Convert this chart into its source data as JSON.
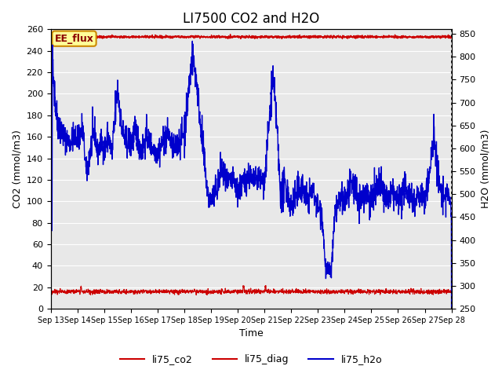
{
  "title": "LI7500 CO2 and H2O",
  "xlabel": "Time",
  "ylabel_left": "CO2 (mmol/m3)",
  "ylabel_right": "H2O (mmol/m3)",
  "ylim_left": [
    0,
    260
  ],
  "ylim_right": [
    250,
    860
  ],
  "yticks_left": [
    0,
    20,
    40,
    60,
    80,
    100,
    120,
    140,
    160,
    180,
    200,
    220,
    240,
    260
  ],
  "yticks_right": [
    250,
    300,
    350,
    400,
    450,
    500,
    550,
    600,
    650,
    700,
    750,
    800,
    850
  ],
  "xtick_labels": [
    "Sep 13",
    "Sep 14",
    "Sep 15",
    "Sep 16",
    "Sep 17",
    "Sep 18",
    "Sep 19",
    "Sep 20",
    "Sep 21",
    "Sep 22",
    "Sep 23",
    "Sep 24",
    "Sep 25",
    "Sep 26",
    "Sep 27",
    "Sep 28"
  ],
  "annotation_text": "EE_flux",
  "annotation_box_color": "#ffff99",
  "annotation_box_edge": "#cc8800",
  "co2_color": "#cc0000",
  "diag_color": "#cc0000",
  "h2o_color": "#0000cc",
  "background_color": "#e8e8e8",
  "grid_color": "#ffffff",
  "title_fontsize": 12,
  "legend_entries": [
    "li75_co2",
    "li75_diag",
    "li75_h2o"
  ]
}
